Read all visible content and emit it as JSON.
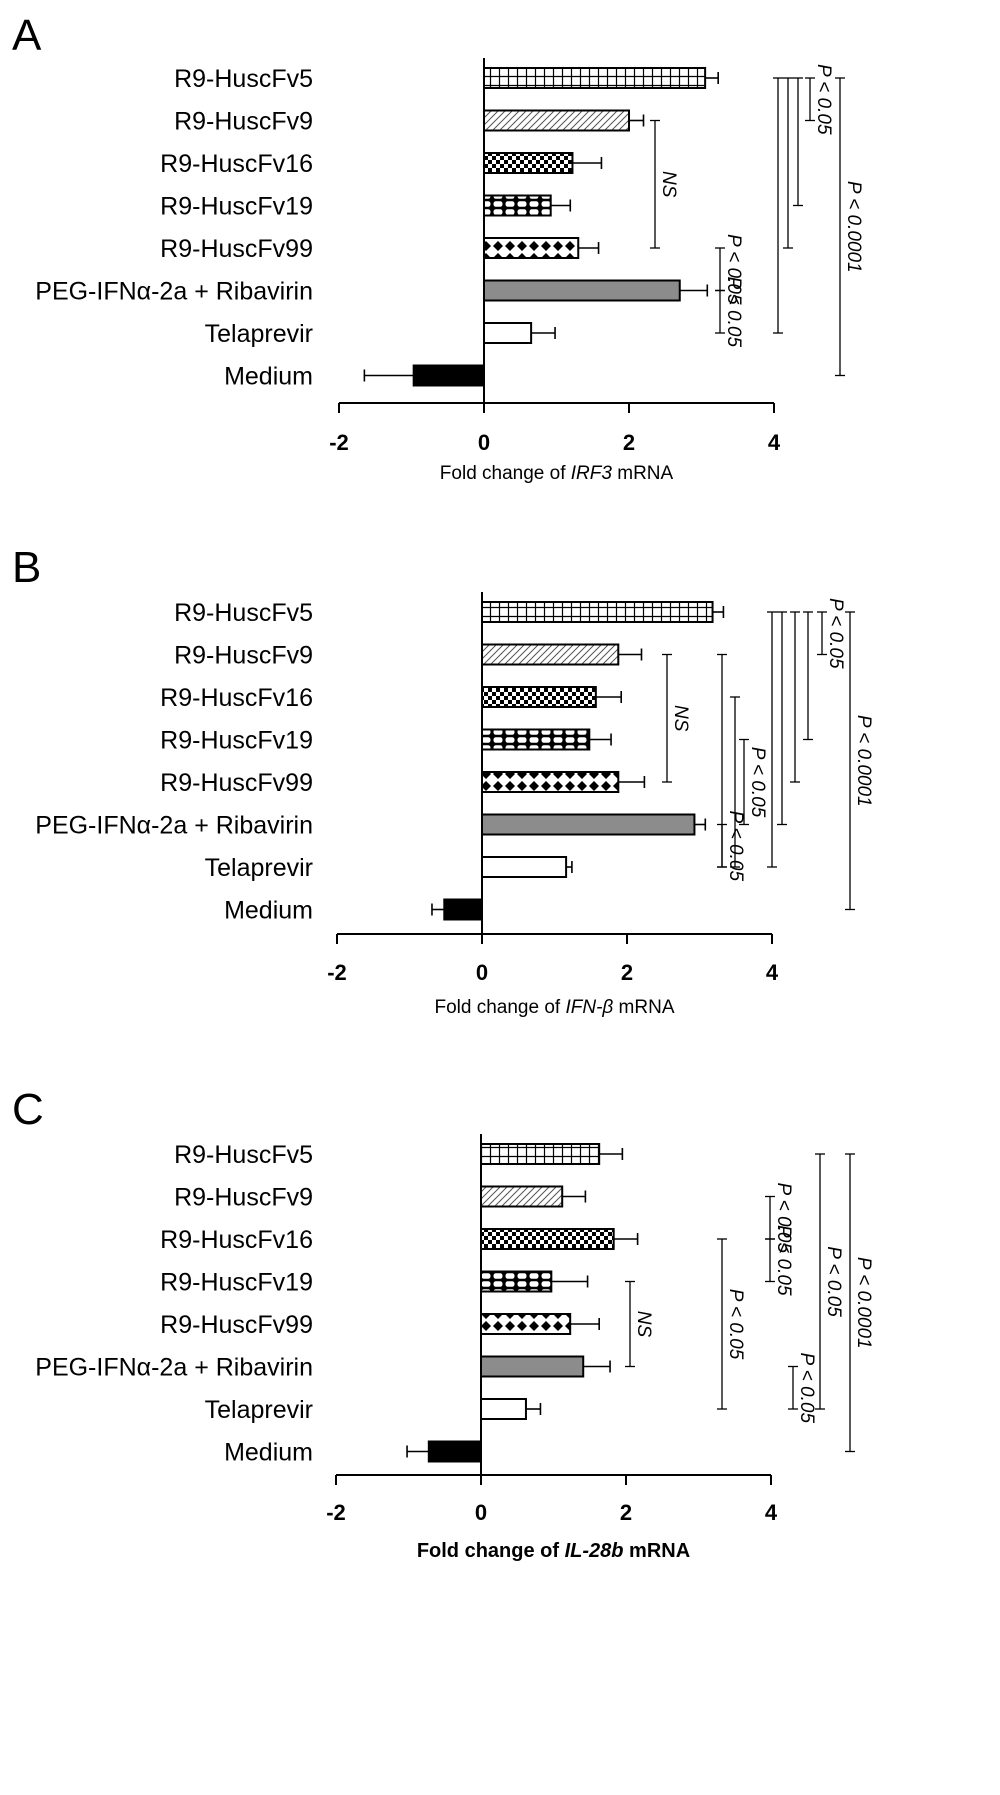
{
  "chart_data": [
    {
      "type": "bar",
      "panel": "A",
      "orientation": "horizontal",
      "categories": [
        "R9-HuscFv5",
        "R9-HuscFv9",
        "R9-HuscFv16",
        "R9-HuscFv19",
        "R9-HuscFv99",
        "PEG-IFNα-2a + Ribavirin",
        "Telaprevir",
        "Medium"
      ],
      "values": [
        3.05,
        2.0,
        1.22,
        0.92,
        1.3,
        2.7,
        0.65,
        -0.97
      ],
      "errors": [
        0.18,
        0.2,
        0.4,
        0.27,
        0.28,
        0.38,
        0.33,
        0.68
      ],
      "patterns": [
        "grid",
        "diag",
        "checker",
        "dots",
        "diamond",
        "gray",
        "white",
        "black"
      ],
      "xlim": [
        -2,
        4
      ],
      "xticks": [
        "-2",
        "0",
        "2",
        "4"
      ],
      "xlabel": {
        "pre": "Fold change of ",
        "gene": "IRF3",
        "post": " mRNA"
      },
      "annotations": [
        {
          "text": "NS",
          "from": 1,
          "to": 4,
          "col": 0
        },
        {
          "text": "P < 0.05",
          "from": 0,
          "to": 1,
          "col": 1
        },
        {
          "text": "",
          "from": 0,
          "to": 3,
          "col": 2
        },
        {
          "text": "",
          "from": 0,
          "to": 4,
          "col": 3
        },
        {
          "text": "",
          "from": 0,
          "to": 6,
          "col": 4
        },
        {
          "text": "P < 0.05",
          "from": 4,
          "to": 5,
          "col": -1
        },
        {
          "text": "P < 0.05",
          "from": 5,
          "to": 6,
          "col": -1
        },
        {
          "text": "P < 0.0001",
          "from": 0,
          "to": 7,
          "col": 5
        }
      ]
    },
    {
      "type": "bar",
      "panel": "B",
      "orientation": "horizontal",
      "categories": [
        "R9-HuscFv5",
        "R9-HuscFv9",
        "R9-HuscFv16",
        "R9-HuscFv19",
        "R9-HuscFv99",
        "PEG-IFNα-2a + Ribavirin",
        "Telaprevir",
        "Medium"
      ],
      "values": [
        3.18,
        1.88,
        1.57,
        1.48,
        1.88,
        2.93,
        1.16,
        -0.52
      ],
      "errors": [
        0.15,
        0.32,
        0.35,
        0.3,
        0.36,
        0.15,
        0.08,
        0.17
      ],
      "patterns": [
        "grid",
        "diag",
        "checker",
        "dots",
        "diamond",
        "gray",
        "white",
        "black"
      ],
      "xlim": [
        -2,
        4
      ],
      "xticks": [
        "-2",
        "0",
        "2",
        "4"
      ],
      "xlabel": {
        "pre": "Fold change of ",
        "gene": "IFN-β",
        "post": " mRNA"
      },
      "annotations": [
        {
          "text": "NS",
          "from": 1,
          "to": 4,
          "col": 0
        },
        {
          "text": "",
          "from": 1,
          "to": 6,
          "col": 1
        },
        {
          "text": "",
          "from": 2,
          "to": 6,
          "col": 2
        },
        {
          "text": "P < 0.05",
          "from": 3,
          "to": 5,
          "col": 3
        },
        {
          "text": "P < 0.05",
          "from": 5,
          "to": 6,
          "col": -1
        },
        {
          "text": "",
          "from": 0,
          "to": 6,
          "col": 4
        },
        {
          "text": "",
          "from": 0,
          "to": 5,
          "col": 5
        },
        {
          "text": "",
          "from": 0,
          "to": 4,
          "col": 6
        },
        {
          "text": "",
          "from": 0,
          "to": 3,
          "col": 7
        },
        {
          "text": "P < 0.05",
          "from": 0,
          "to": 1,
          "col": 8
        },
        {
          "text": "P < 0.0001",
          "from": 0,
          "to": 7,
          "col": 9
        }
      ]
    },
    {
      "type": "bar",
      "panel": "C",
      "orientation": "horizontal",
      "categories": [
        "R9-HuscFv5",
        "R9-HuscFv9",
        "R9-HuscFv16",
        "R9-HuscFv19",
        "R9-HuscFv99",
        "PEG-IFNα-2a + Ribavirin",
        "Telaprevir",
        "Medium"
      ],
      "values": [
        1.63,
        1.12,
        1.83,
        0.97,
        1.23,
        1.41,
        0.62,
        -0.72
      ],
      "errors": [
        0.32,
        0.32,
        0.33,
        0.5,
        0.4,
        0.37,
        0.2,
        0.3
      ],
      "patterns": [
        "grid",
        "diag",
        "checker",
        "dots",
        "diamond",
        "gray",
        "white",
        "black"
      ],
      "xlim": [
        -2,
        4
      ],
      "xticks": [
        "-2",
        "0",
        "2",
        "4"
      ],
      "xlabel": {
        "pre": "Fold change of ",
        "gene": "IL-28b",
        "post": " mRNA",
        "bold": true
      },
      "annotations": [
        {
          "text": "NS",
          "from": 3,
          "to": 5,
          "col": 0
        },
        {
          "text": "P < 0.05",
          "from": 2,
          "to": 6,
          "col": 1
        },
        {
          "text": "P < 0.05",
          "from": 1,
          "to": 2,
          "col": 2
        },
        {
          "text": "P < 0.05",
          "from": 2,
          "to": 3,
          "col": 3
        },
        {
          "text": "P < 0.05",
          "from": 0,
          "to": 6,
          "col": 4
        },
        {
          "text": "P < 0.05",
          "from": 5,
          "to": 6,
          "col": 5
        },
        {
          "text": "P < 0.0001",
          "from": 0,
          "to": 7,
          "col": 6
        }
      ]
    }
  ]
}
